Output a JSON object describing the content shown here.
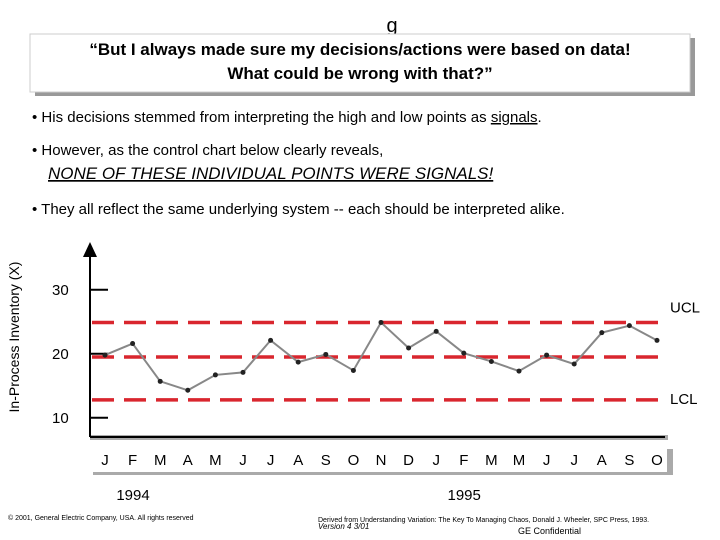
{
  "slide": {
    "mark": "g",
    "quote_lines": [
      "“But I always made sure my decisions/actions were based on data!",
      "What could be wrong with that?”"
    ],
    "bullet1": [
      "His decisions stemmed from interpreting the high and low points as ",
      "signals",
      "."
    ],
    "bullet2": "However, as the control chart below clearly reveals,",
    "emphasis": "NONE OF THESE INDIVIDUAL POINTS WERE SIGNALS!",
    "bullet3": "They all reflect the same underlying system -- each should be interpreted alike.",
    "copyright": "© 2001, General Electric Company, USA. All rights reserved",
    "source": "Derived from Understanding Variation: The Key To Managing Chaos, Donald J. Wheeler, SPC Press, 1993.",
    "version": "Version 4 3/01",
    "confidential": "GE Confidential"
  },
  "chart_data": {
    "type": "control",
    "y_label": "In-Process Inventory (X)",
    "categories": [
      "J",
      "F",
      "M",
      "A",
      "M",
      "J",
      "J",
      "A",
      "S",
      "O",
      "N",
      "D",
      "J",
      "F",
      "M",
      "M",
      "J",
      "J",
      "A",
      "S",
      "O"
    ],
    "years": [
      {
        "label": "1994",
        "start": 0
      },
      {
        "label": "1995",
        "start": 12
      }
    ],
    "series": [
      {
        "name": "X",
        "color": "#888888",
        "values": [
          19.8,
          21.6,
          15.7,
          14.3,
          16.7,
          17.1,
          22.1,
          18.7,
          19.9,
          17.4,
          24.9,
          20.9,
          23.5,
          20.1,
          18.8,
          17.3,
          19.8,
          18.4,
          23.3,
          24.4,
          22.1
        ]
      }
    ],
    "ucl": {
      "label": "UCL",
      "value": 24.9
    },
    "center": 19.5,
    "lcl": {
      "label": "LCL",
      "value": 12.8
    },
    "limit_color": "#d9262e",
    "ylim": [
      7,
      37
    ],
    "yticks": [
      10,
      20,
      30
    ]
  }
}
